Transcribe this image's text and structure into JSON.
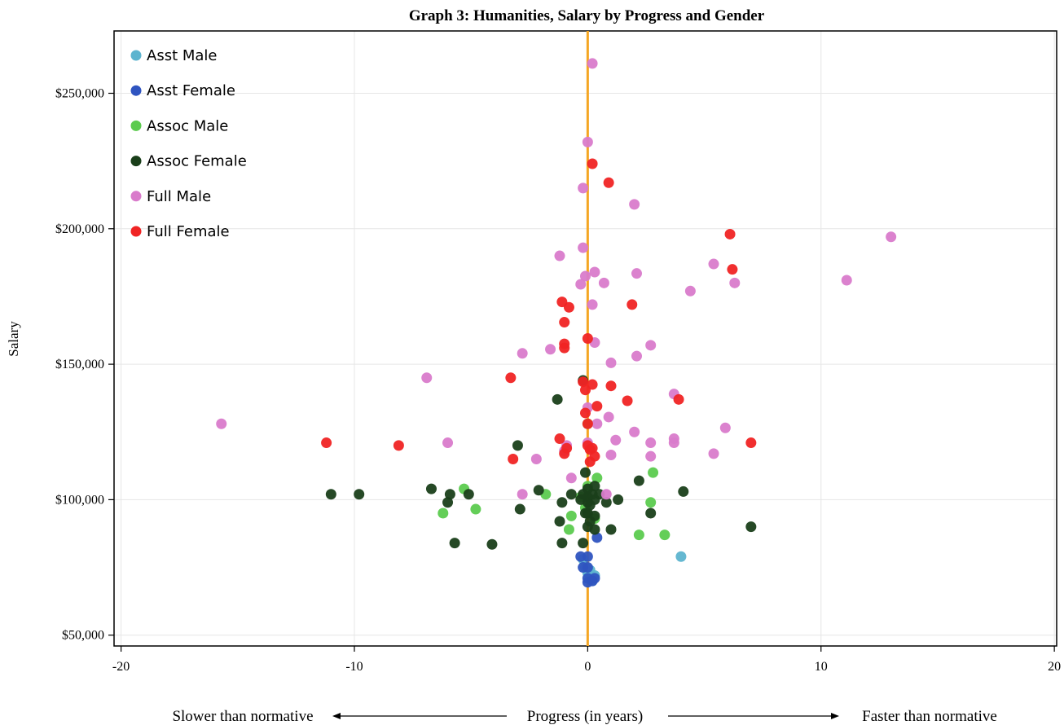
{
  "chart_data": {
    "type": "scatter",
    "title": "Graph 3: Humanities, Salary by Progress and Gender",
    "ylabel": "Salary",
    "xlabel": "Progress (in years)",
    "x_left_note": "Slower than normative",
    "x_right_note": "Faster than normative",
    "xlim": [
      -20.3,
      20.1
    ],
    "ylim": [
      46000,
      273000
    ],
    "xticks": [
      -20,
      -10,
      0,
      10,
      20
    ],
    "xtick_labels": [
      "-20",
      "-10",
      "0",
      "10",
      "20"
    ],
    "yticks": [
      50000,
      100000,
      150000,
      200000,
      250000
    ],
    "ytick_labels": [
      "$50,000",
      "$100,000",
      "$150,000",
      "$200,000",
      "$250,000"
    ],
    "grid": true,
    "reference_line": {
      "x": 0,
      "color": "#F5A623"
    },
    "legend_position": "top-left",
    "series": [
      {
        "name": "Asst Male",
        "color": "#5DB4CF",
        "points": [
          [
            -0.1,
            75000
          ],
          [
            0.1,
            74000
          ],
          [
            0.3,
            72000
          ],
          [
            -0.2,
            78000
          ],
          [
            0.2,
            70000
          ],
          [
            4.0,
            79000
          ],
          [
            0.0,
            73000
          ]
        ]
      },
      {
        "name": "Asst Female",
        "color": "#2F54C0",
        "points": [
          [
            0.4,
            86000
          ],
          [
            -0.3,
            79000
          ],
          [
            0.0,
            79000
          ],
          [
            -0.2,
            75000
          ],
          [
            0.0,
            75000
          ],
          [
            0.0,
            71000
          ],
          [
            0.0,
            69500
          ],
          [
            0.3,
            71000
          ],
          [
            0.2,
            70000
          ]
        ]
      },
      {
        "name": "Assoc Male",
        "color": "#5CCB4F",
        "points": [
          [
            -5.3,
            104000
          ],
          [
            -6.2,
            95000
          ],
          [
            -4.8,
            96500
          ],
          [
            -1.8,
            102000
          ],
          [
            -0.8,
            89000
          ],
          [
            -0.7,
            94000
          ],
          [
            -0.3,
            101000
          ],
          [
            0.0,
            128000
          ],
          [
            0.4,
            108000
          ],
          [
            2.8,
            110000
          ],
          [
            2.7,
            99000
          ],
          [
            2.2,
            87000
          ],
          [
            3.3,
            87000
          ],
          [
            0.0,
            105000
          ],
          [
            -0.1,
            97000
          ],
          [
            0.3,
            93000
          ]
        ]
      },
      {
        "name": "Assoc Female",
        "color": "#1A3F1A",
        "points": [
          [
            -11.0,
            102000
          ],
          [
            -9.8,
            102000
          ],
          [
            -6.7,
            104000
          ],
          [
            -6.0,
            99000
          ],
          [
            -5.9,
            102000
          ],
          [
            -5.1,
            102000
          ],
          [
            -5.7,
            84000
          ],
          [
            -4.1,
            83500
          ],
          [
            -3.0,
            120000
          ],
          [
            -2.9,
            96500
          ],
          [
            -2.1,
            103500
          ],
          [
            -1.3,
            137000
          ],
          [
            -1.1,
            99000
          ],
          [
            -1.1,
            84000
          ],
          [
            -1.2,
            92000
          ],
          [
            -0.7,
            102000
          ],
          [
            -0.2,
            144000
          ],
          [
            -0.1,
            110000
          ],
          [
            0.0,
            104000
          ],
          [
            0.0,
            99000
          ],
          [
            0.0,
            95000
          ],
          [
            0.0,
            90000
          ],
          [
            0.0,
            101000
          ],
          [
            0.3,
            105000
          ],
          [
            0.3,
            100000
          ],
          [
            0.3,
            94000
          ],
          [
            0.3,
            89000
          ],
          [
            0.8,
            99000
          ],
          [
            1.3,
            100000
          ],
          [
            2.2,
            107000
          ],
          [
            2.7,
            95000
          ],
          [
            4.1,
            103000
          ],
          [
            7.0,
            90000
          ],
          [
            1.0,
            89000
          ],
          [
            -0.2,
            84000
          ],
          [
            -0.1,
            95000
          ],
          [
            0.5,
            102000
          ],
          [
            -0.3,
            100000
          ],
          [
            0.1,
            98000
          ],
          [
            0.1,
            92000
          ],
          [
            -0.2,
            102000
          ],
          [
            0.2,
            102000
          ]
        ]
      },
      {
        "name": "Full Male",
        "color": "#D97BCB",
        "points": [
          [
            0.2,
            261000
          ],
          [
            0.0,
            232000
          ],
          [
            -0.2,
            215000
          ],
          [
            2.0,
            209000
          ],
          [
            -0.2,
            193000
          ],
          [
            -1.2,
            190000
          ],
          [
            0.3,
            184000
          ],
          [
            -0.1,
            182500
          ],
          [
            2.1,
            183500
          ],
          [
            -0.3,
            179500
          ],
          [
            0.7,
            180000
          ],
          [
            5.4,
            187000
          ],
          [
            4.4,
            177000
          ],
          [
            6.3,
            180000
          ],
          [
            11.1,
            181000
          ],
          [
            13.0,
            197000
          ],
          [
            0.2,
            172000
          ],
          [
            0.3,
            158000
          ],
          [
            -1.6,
            155500
          ],
          [
            -2.8,
            154000
          ],
          [
            1.0,
            150500
          ],
          [
            2.1,
            153000
          ],
          [
            2.7,
            157000
          ],
          [
            -6.9,
            145000
          ],
          [
            3.7,
            139000
          ],
          [
            0.0,
            134000
          ],
          [
            0.9,
            130500
          ],
          [
            -15.7,
            128000
          ],
          [
            0.4,
            128000
          ],
          [
            2.0,
            125000
          ],
          [
            5.9,
            126500
          ],
          [
            1.2,
            122000
          ],
          [
            2.7,
            121000
          ],
          [
            3.7,
            122500
          ],
          [
            3.7,
            121000
          ],
          [
            -6.0,
            121000
          ],
          [
            -0.9,
            120000
          ],
          [
            0.0,
            121000
          ],
          [
            1.0,
            116500
          ],
          [
            2.7,
            116000
          ],
          [
            5.4,
            117000
          ],
          [
            -2.2,
            115000
          ],
          [
            -0.7,
            108000
          ],
          [
            -2.8,
            102000
          ],
          [
            0.8,
            102000
          ],
          [
            -1.0,
            118000
          ]
        ]
      },
      {
        "name": "Full Female",
        "color": "#F02424",
        "points": [
          [
            0.2,
            224000
          ],
          [
            0.9,
            217000
          ],
          [
            6.1,
            198000
          ],
          [
            6.2,
            185000
          ],
          [
            -1.1,
            173000
          ],
          [
            -0.8,
            171000
          ],
          [
            1.9,
            172000
          ],
          [
            -1.0,
            165500
          ],
          [
            -1.0,
            157500
          ],
          [
            -1.0,
            156000
          ],
          [
            0.0,
            159500
          ],
          [
            -3.3,
            145000
          ],
          [
            -0.2,
            143500
          ],
          [
            0.2,
            142500
          ],
          [
            1.0,
            142000
          ],
          [
            -0.1,
            140500
          ],
          [
            0.4,
            134500
          ],
          [
            1.7,
            136500
          ],
          [
            3.9,
            137000
          ],
          [
            -0.1,
            132000
          ],
          [
            0.0,
            128000
          ],
          [
            -1.2,
            122500
          ],
          [
            -1.0,
            117000
          ],
          [
            -0.9,
            119000
          ],
          [
            0.0,
            120000
          ],
          [
            0.2,
            119000
          ],
          [
            0.1,
            118500
          ],
          [
            0.3,
            116000
          ],
          [
            -3.2,
            115000
          ],
          [
            0.1,
            114000
          ],
          [
            -11.2,
            121000
          ],
          [
            -8.1,
            120000
          ],
          [
            7.0,
            121000
          ]
        ]
      }
    ]
  }
}
